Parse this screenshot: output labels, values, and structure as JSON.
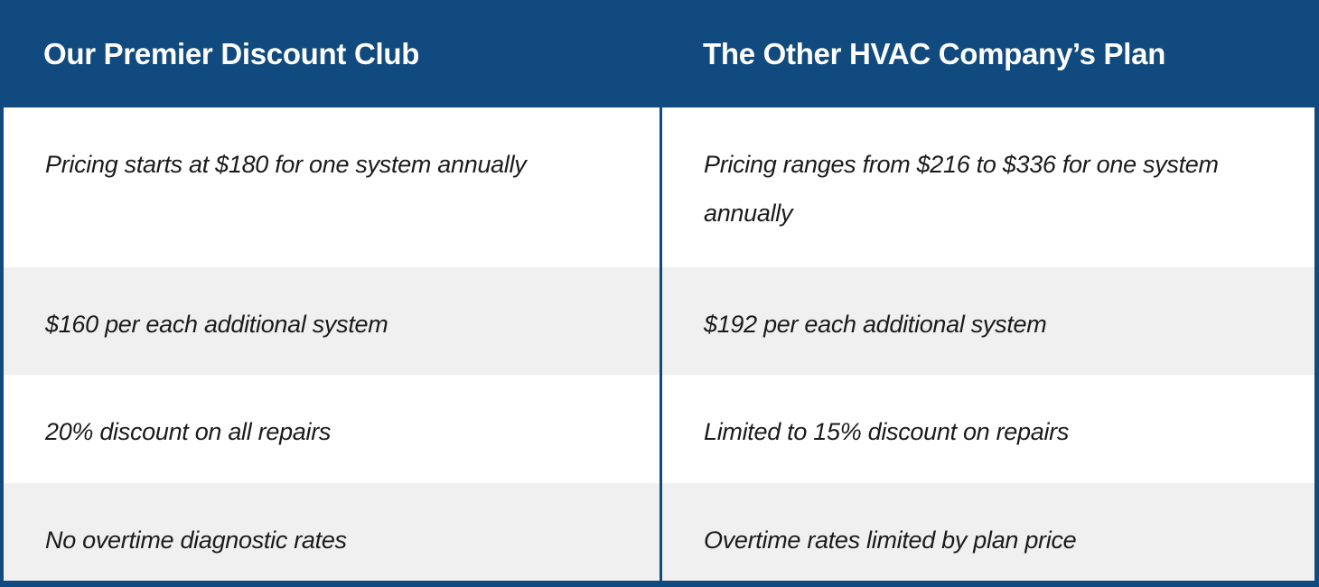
{
  "colors": {
    "accent": "#114a7e",
    "row_alt": "#f0f0f1",
    "row_base": "#ffffff",
    "body_text": "#1b1b1b",
    "header_text": "#ffffff"
  },
  "chart_data": {
    "type": "table",
    "title": "",
    "columns": [
      "Our Premier Discount Club",
      "The Other HVAC Company’s Plan"
    ],
    "rows": [
      [
        "Pricing starts at $180 for one system annually",
        "Pricing ranges from $216 to $336 for one system annually"
      ],
      [
        "$160 per each additional system",
        "$192 per each additional system"
      ],
      [
        "20% discount on all repairs",
        "Limited to 15% discount on repairs"
      ],
      [
        "No overtime diagnostic rates",
        "Overtime rates limited by plan price"
      ]
    ]
  },
  "table": {
    "columns": [
      {
        "header": "Our Premier Discount Club"
      },
      {
        "header": "The Other HVAC Company’s Plan"
      }
    ],
    "rows": [
      {
        "left": "Pricing starts at $180 for one system annually",
        "right": "Pricing ranges from $216 to $336 for one system annually"
      },
      {
        "left": "$160 per each additional system",
        "right": "$192 per each additional system"
      },
      {
        "left": "20% discount on all repairs",
        "right": "Limited to 15% discount on repairs"
      },
      {
        "left": "No overtime diagnostic rates",
        "right": "Overtime rates limited by plan price"
      }
    ]
  }
}
